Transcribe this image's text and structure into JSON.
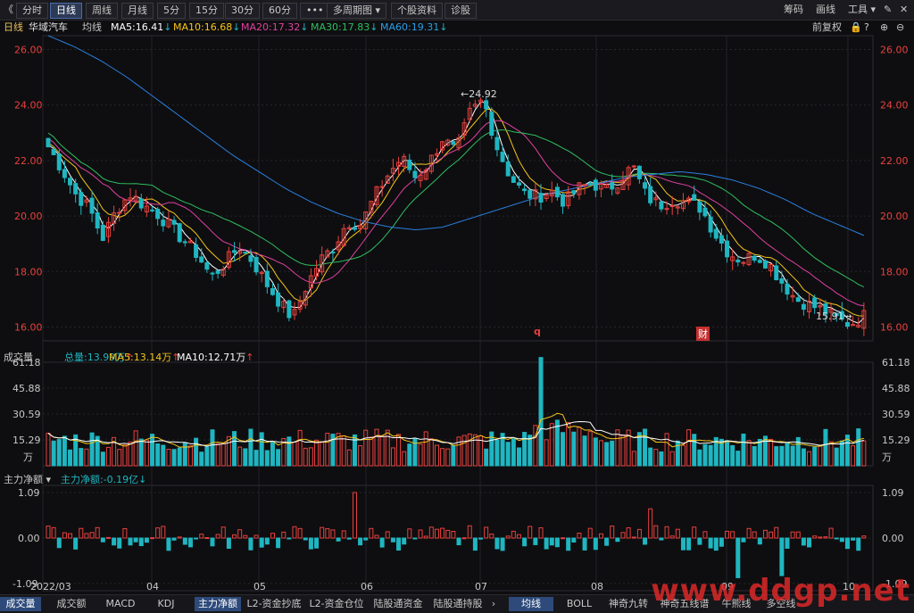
{
  "toolbar": {
    "back": "《",
    "periods": [
      "分时",
      "日线",
      "周线",
      "月线",
      "5分",
      "15分",
      "30分",
      "60分"
    ],
    "active_period": "日线",
    "more": "•••",
    "multi_period": "多周期图",
    "stock_info": "个股资料",
    "diagnose": "诊股",
    "right": [
      "筹码",
      "画线",
      "工具"
    ]
  },
  "ma_bar": {
    "period": "日线",
    "stock_name": "华域汽车",
    "type": "均线",
    "ma5": "MA5:16.41",
    "ma10": "MA10:16.68",
    "ma20": "MA20:17.32",
    "ma30": "MA30:17.83",
    "ma60": "MA60:19.31",
    "adjust": "前复权"
  },
  "colors": {
    "up": "#e8413e",
    "down": "#1fb6c1",
    "ma5": "#ffffff",
    "ma10": "#f5c518",
    "ma20": "#e040a0",
    "ma30": "#2fbf60",
    "ma60": "#2b7fe0"
  },
  "price_axis": [
    "26.00",
    "24.00",
    "22.00",
    "20.00",
    "18.00",
    "16.00"
  ],
  "annotations": {
    "high": "24.92",
    "low": "15.91",
    "marker_q": "q",
    "marker_cai": "财"
  },
  "volume": {
    "title": "成交量",
    "total": "总量:13.99万",
    "ma5": "MA5:13.14万",
    "ma10": "MA10:12.71万",
    "axis": [
      "61.18",
      "45.88",
      "30.59",
      "15.29",
      "万"
    ]
  },
  "flow": {
    "title": "主力净额",
    "value": "主力净额:-0.19亿",
    "axis": [
      "1.09",
      "0.00",
      "-1.09"
    ]
  },
  "x_axis": [
    "2022/03",
    "04",
    "05",
    "06",
    "07",
    "08",
    "09",
    "10"
  ],
  "bottom_tabs_left": [
    "成交量",
    "成交额",
    "MACD",
    "KDJ",
    "主力净额",
    "L2-资金抄底",
    "L2-资金仓位",
    "陆股通资金",
    "陆股通持股"
  ],
  "bottom_tabs_right": [
    "均线",
    "BOLL",
    "神奇九转",
    "神奇五线谱",
    "牛熊线",
    "多空线"
  ],
  "active_tab_left": "主力净额",
  "active_tab_right": "均线",
  "watermark": "www.ddgp.net",
  "chart_data": {
    "type": "candlestick",
    "x": [
      "2022/03",
      "04",
      "05",
      "06",
      "07",
      "08",
      "09",
      "10"
    ],
    "close_path": [
      22.5,
      21.7,
      20.8,
      20.3,
      19.2,
      20.2,
      20.8,
      20.4,
      20.1,
      19.6,
      19.1,
      18.6,
      17.8,
      18.3,
      18.9,
      18.4,
      17.6,
      16.9,
      16.3,
      17.5,
      18.4,
      18.9,
      19.8,
      19.7,
      20.7,
      21.5,
      22.1,
      21.4,
      21.9,
      22.8,
      22.3,
      23.7,
      24.2,
      22.5,
      21.4,
      20.8,
      20.7,
      20.9,
      20.5,
      21.0,
      21.2,
      20.9,
      21.3,
      21.8,
      20.7,
      20.4,
      20.6,
      20.5,
      20.3,
      19.4,
      18.7,
      18.4,
      18.6,
      18.3,
      17.6,
      17.0,
      16.8,
      16.6,
      16.3,
      16.1,
      16.4
    ],
    "ma60_path": [
      26.5,
      26.1,
      25.6,
      25.0,
      24.3,
      23.6,
      22.9,
      22.2,
      21.6,
      21.0,
      20.5,
      20.1,
      19.8,
      19.6,
      19.5,
      19.6,
      19.9,
      20.2,
      20.5,
      20.8,
      21.0,
      21.2,
      21.4,
      21.5,
      21.6,
      21.5,
      21.3,
      21.0,
      20.6,
      20.1,
      19.7,
      19.3
    ],
    "ylim": [
      15.5,
      26.5
    ],
    "high": 24.92,
    "low": 15.91,
    "volume_ylim": [
      0,
      61.18
    ],
    "flow_ylim": [
      -1.09,
      1.09
    ]
  }
}
